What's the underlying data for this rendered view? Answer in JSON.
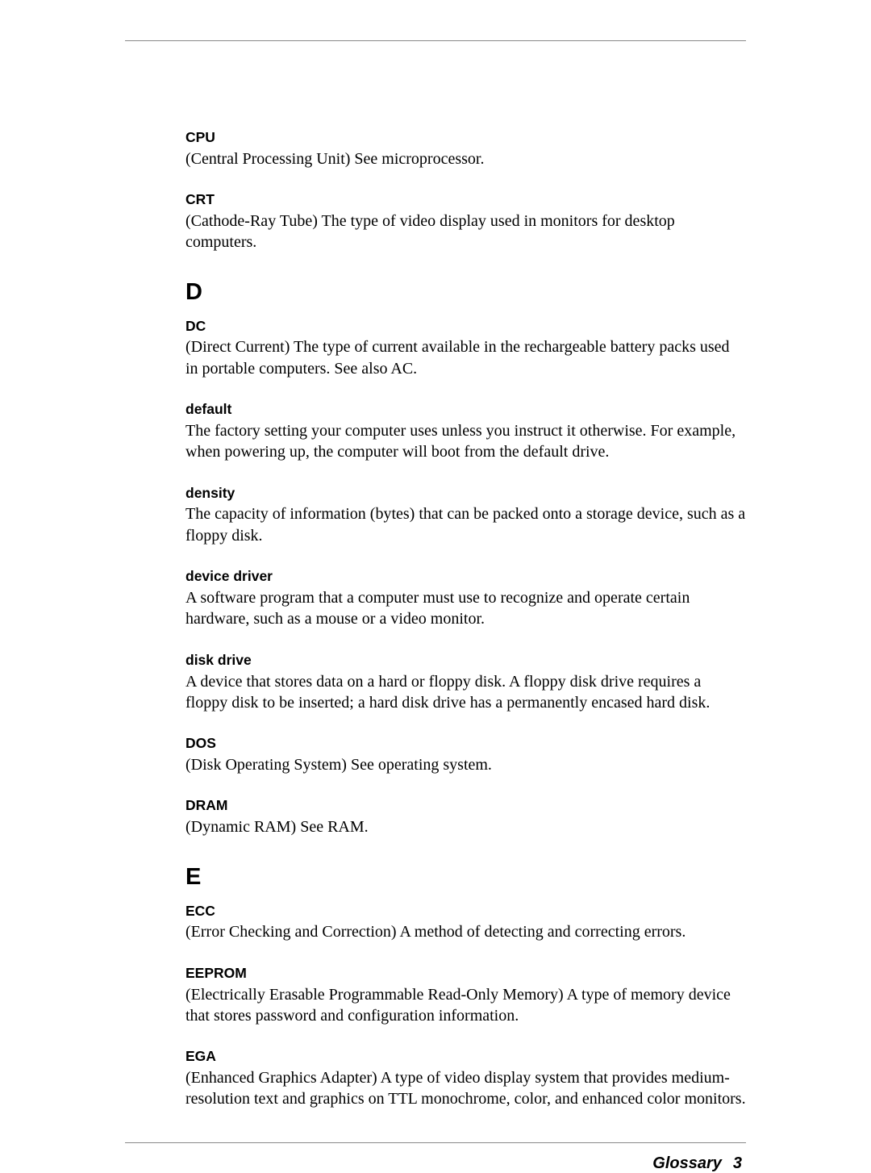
{
  "entries_top": [
    {
      "term": "CPU",
      "def": "(Central Processing Unit) See microprocessor."
    },
    {
      "term": "CRT",
      "def": "(Cathode-Ray Tube) The type of video display used in monitors for desktop computers."
    }
  ],
  "section_d": "D",
  "entries_d": [
    {
      "term": "DC",
      "def": "(Direct Current) The type of current available in the rechargeable battery packs used in portable computers. See also AC."
    },
    {
      "term": "default",
      "def": "The factory setting your computer uses unless you instruct it otherwise. For example, when powering up, the computer will boot from the default drive."
    },
    {
      "term": "density",
      "def": "The capacity of information (bytes) that can be packed onto a storage device, such as a floppy disk."
    },
    {
      "term": "device driver",
      "def": "A software program that a computer must use to recognize and operate certain hardware, such as a mouse or a video monitor."
    },
    {
      "term": "disk drive",
      "def": "A device that stores data on a hard or floppy disk. A floppy disk drive requires a floppy disk to be inserted; a hard disk drive has a permanently encased hard disk."
    },
    {
      "term": "DOS",
      "def": "(Disk Operating System) See operating system."
    },
    {
      "term": "DRAM",
      "def": "(Dynamic RAM) See RAM."
    }
  ],
  "section_e": "E",
  "entries_e": [
    {
      "term": "ECC",
      "def": "(Error Checking and Correction) A method of detecting and correcting errors."
    },
    {
      "term": "EEPROM",
      "def": "(Electrically Erasable Programmable Read-Only Memory) A type of memory device that stores password and configuration information."
    },
    {
      "term": "EGA",
      "def": "(Enhanced Graphics Adapter) A type of video display system that provides medium-resolution text and graphics on TTL monochrome, color, and enhanced color monitors."
    }
  ],
  "footer": {
    "label": "Glossary",
    "page": "3"
  }
}
